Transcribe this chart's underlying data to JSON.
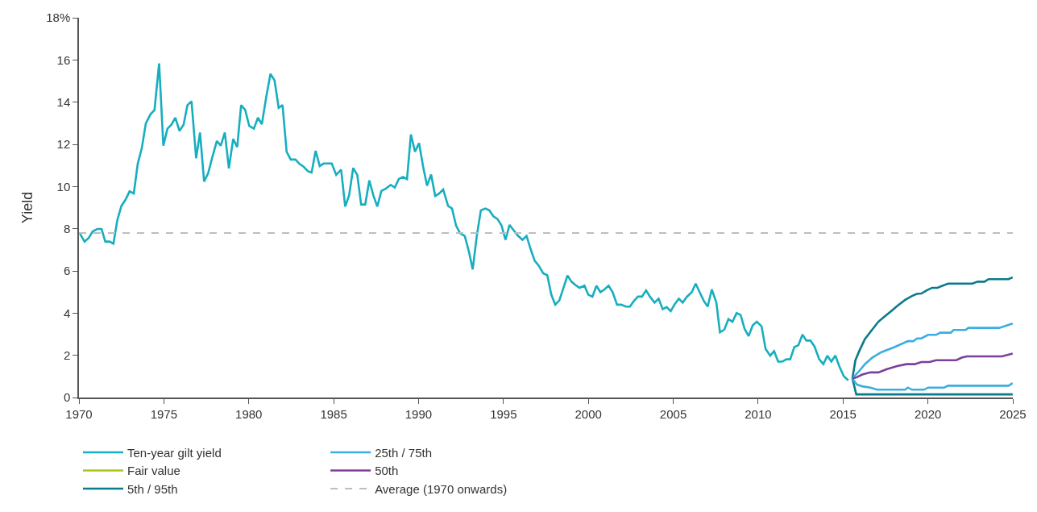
{
  "chart_data": {
    "type": "line",
    "ylabel": "Yield",
    "xlim": [
      1970,
      2025
    ],
    "xticks": [
      1970,
      1975,
      1980,
      1985,
      1990,
      1995,
      2000,
      2005,
      2010,
      2015,
      2020,
      2025
    ],
    "ylim": [
      0,
      18
    ],
    "yticks": [
      0,
      2,
      4,
      6,
      8,
      10,
      12,
      14,
      16,
      {
        "value": 18,
        "label": "18%"
      }
    ],
    "legend": "bottom",
    "line_style": "solid",
    "marker": "none",
    "series": [
      {
        "name": "Ten-year gilt yield",
        "color": "#17aebf",
        "x": [
          1970.06,
          1970.33,
          1970.57,
          1970.81,
          1971.08,
          1971.33,
          1971.55,
          1971.8,
          1972.03,
          1972.26,
          1972.5,
          1972.74,
          1972.98,
          1973.23,
          1973.46,
          1973.7,
          1973.94,
          1974.21,
          1974.45,
          1974.72,
          1974.97,
          1975.21,
          1975.44,
          1975.68,
          1975.92,
          1976.16,
          1976.39,
          1976.63,
          1976.9,
          1977.13,
          1977.37,
          1977.61,
          1977.85,
          1978.12,
          1978.35,
          1978.59,
          1978.83,
          1979.08,
          1979.32,
          1979.55,
          1979.79,
          1980.03,
          1980.3,
          1980.54,
          1980.77,
          1981.04,
          1981.28,
          1981.52,
          1981.76,
          1981.99,
          1982.23,
          1982.47,
          1982.75,
          1982.99,
          1983.23,
          1983.49,
          1983.7,
          1983.94,
          1984.18,
          1984.41,
          1984.89,
          1985.15,
          1985.44,
          1985.68,
          1985.91,
          1986.15,
          1986.39,
          1986.62,
          1986.86,
          1987.1,
          1987.34,
          1987.57,
          1987.81,
          1988.05,
          1988.36,
          1988.6,
          1988.84,
          1989.08,
          1989.32,
          1989.55,
          1989.79,
          1990.03,
          1990.27,
          1990.5,
          1990.74,
          1990.98,
          1991.22,
          1991.45,
          1991.74,
          1991.97,
          1992.21,
          1992.45,
          1992.72,
          1992.96,
          1993.19,
          1993.43,
          1993.67,
          1993.93,
          1994.17,
          1994.41,
          1994.65,
          1994.89,
          1995.12,
          1995.36,
          1995.6,
          1995.84,
          1996.12,
          1996.36,
          1996.6,
          1996.84,
          1997.07,
          1997.34,
          1997.58,
          1997.82,
          1998.05,
          1998.29,
          1998.53,
          1998.77,
          1999.01,
          1999.24,
          1999.48,
          1999.77,
          2000.0,
          2000.24,
          2000.48,
          2000.71,
          2000.95,
          2001.19,
          2001.43,
          2001.69,
          2001.93,
          2002.21,
          2002.45,
          2002.69,
          2002.92,
          2003.16,
          2003.4,
          2003.63,
          2003.9,
          2004.14,
          2004.38,
          2004.61,
          2004.85,
          2005.09,
          2005.33,
          2005.56,
          2005.8,
          2006.09,
          2006.32,
          2006.56,
          2006.8,
          2007.03,
          2007.27,
          2007.54,
          2007.75,
          2008.01,
          2008.25,
          2008.49,
          2008.73,
          2008.97,
          2009.2,
          2009.44,
          2009.68,
          2009.92,
          2010.2,
          2010.44,
          2010.71,
          2010.94,
          2011.18,
          2011.42,
          2011.66,
          2011.89,
          2012.13,
          2012.37,
          2012.61,
          2012.84,
          2013.08,
          2013.32,
          2013.6,
          2013.84,
          2014.08,
          2014.31,
          2014.55,
          2014.79,
          2015.05,
          2015.31
        ],
        "values": [
          7.76,
          7.39,
          7.56,
          7.87,
          7.99,
          7.99,
          7.39,
          7.39,
          7.29,
          8.41,
          9.08,
          9.37,
          9.77,
          9.67,
          11.07,
          11.82,
          13.0,
          13.42,
          13.63,
          15.84,
          11.94,
          12.74,
          12.93,
          13.26,
          12.64,
          12.93,
          13.86,
          14.04,
          11.34,
          12.56,
          10.24,
          10.63,
          11.38,
          12.16,
          11.94,
          12.56,
          10.86,
          12.25,
          11.87,
          13.86,
          13.63,
          12.87,
          12.74,
          13.26,
          12.95,
          14.29,
          15.34,
          15.03,
          13.73,
          13.86,
          11.65,
          11.28,
          11.28,
          11.07,
          10.94,
          10.72,
          10.66,
          11.69,
          10.97,
          11.09,
          11.09,
          10.55,
          10.8,
          9.05,
          9.58,
          10.88,
          10.55,
          9.15,
          9.15,
          10.29,
          9.58,
          9.05,
          9.79,
          9.89,
          10.08,
          9.95,
          10.36,
          10.45,
          10.35,
          12.47,
          11.65,
          12.06,
          10.94,
          10.04,
          10.57,
          9.55,
          9.67,
          9.86,
          9.08,
          8.96,
          8.15,
          7.78,
          7.66,
          6.94,
          6.07,
          7.66,
          8.87,
          8.96,
          8.87,
          8.59,
          8.46,
          8.15,
          7.47,
          8.18,
          7.93,
          7.68,
          7.47,
          7.66,
          7.04,
          6.48,
          6.26,
          5.89,
          5.8,
          4.87,
          4.4,
          4.6,
          5.18,
          5.78,
          5.49,
          5.33,
          5.2,
          5.3,
          4.87,
          4.78,
          5.3,
          4.99,
          5.12,
          5.3,
          4.99,
          4.4,
          4.4,
          4.31,
          4.31,
          4.58,
          4.78,
          4.78,
          5.08,
          4.78,
          4.5,
          4.68,
          4.19,
          4.29,
          4.09,
          4.42,
          4.68,
          4.5,
          4.77,
          4.99,
          5.4,
          4.99,
          4.58,
          4.31,
          5.12,
          4.5,
          3.09,
          3.22,
          3.72,
          3.59,
          4.0,
          3.91,
          3.26,
          2.91,
          3.42,
          3.59,
          3.38,
          2.3,
          1.98,
          2.2,
          1.7,
          1.7,
          1.81,
          1.81,
          2.39,
          2.48,
          2.98,
          2.7,
          2.7,
          2.42,
          1.81,
          1.58,
          1.98,
          1.7,
          1.99,
          1.46,
          1.0,
          0.81
        ]
      },
      {
        "name": "Fair value",
        "color": "#a8c61c"
      },
      {
        "name": "5th / 95th",
        "color": "#0a7b8a",
        "x": [
          2015.55,
          2015.73,
          2015.97,
          2016.29,
          2016.72,
          2017.08,
          2017.45,
          2017.83,
          2018.19,
          2018.66,
          2019.06,
          2019.34,
          2019.61,
          2019.93,
          2020.24,
          2020.56,
          2020.87,
          2021.19,
          2022.61,
          2022.93,
          2023.33,
          2023.57,
          2024.75,
          2024.99,
          null,
          2015.55,
          2015.78,
          2024.99
        ],
        "values": [
          0.9,
          1.77,
          2.23,
          2.77,
          3.22,
          3.59,
          3.84,
          4.09,
          4.34,
          4.63,
          4.81,
          4.91,
          4.93,
          5.08,
          5.2,
          5.2,
          5.3,
          5.4,
          5.4,
          5.49,
          5.49,
          5.61,
          5.61,
          5.7,
          null,
          0.9,
          0.15,
          0.15
        ]
      },
      {
        "name": "25th / 75th",
        "color": "#3aaee0",
        "x": [
          2015.55,
          2015.97,
          2016.29,
          2016.72,
          2017.24,
          2018.03,
          2018.82,
          2019.14,
          2019.37,
          2019.61,
          2020.01,
          2020.48,
          2020.72,
          2021.35,
          2021.51,
          2022.22,
          2022.38,
          2024.2,
          2024.52,
          2024.99,
          null,
          2015.55,
          2015.81,
          2016.13,
          2016.61,
          2017.0,
          2018.66,
          2018.82,
          2019.06,
          2019.77,
          2020.01,
          2020.95,
          2021.19,
          2024.75,
          2024.99
        ],
        "values": [
          0.9,
          1.27,
          1.58,
          1.89,
          2.14,
          2.39,
          2.67,
          2.67,
          2.8,
          2.8,
          2.97,
          2.97,
          3.07,
          3.07,
          3.2,
          3.2,
          3.3,
          3.3,
          3.38,
          3.51,
          null,
          0.9,
          0.62,
          0.53,
          0.47,
          0.37,
          0.37,
          0.47,
          0.37,
          0.37,
          0.47,
          0.47,
          0.56,
          0.56,
          0.68
        ]
      },
      {
        "name": "50th",
        "color": "#7b3f9e",
        "x": [
          2015.55,
          2015.81,
          2016.13,
          2016.61,
          2017.08,
          2017.56,
          2018.19,
          2018.74,
          2019.22,
          2019.61,
          2020.09,
          2020.48,
          2021.67,
          2021.99,
          2022.3,
          2024.36,
          2024.99
        ],
        "values": [
          0.9,
          0.96,
          1.09,
          1.19,
          1.19,
          1.34,
          1.49,
          1.58,
          1.58,
          1.68,
          1.68,
          1.77,
          1.77,
          1.89,
          1.95,
          1.95,
          2.08
        ]
      }
    ],
    "ref_lines": [
      {
        "axis": "y",
        "value": 7.8,
        "label": "Average (1970 onwards)",
        "color": "#bdbdbd",
        "line_style": "dashed"
      }
    ]
  }
}
